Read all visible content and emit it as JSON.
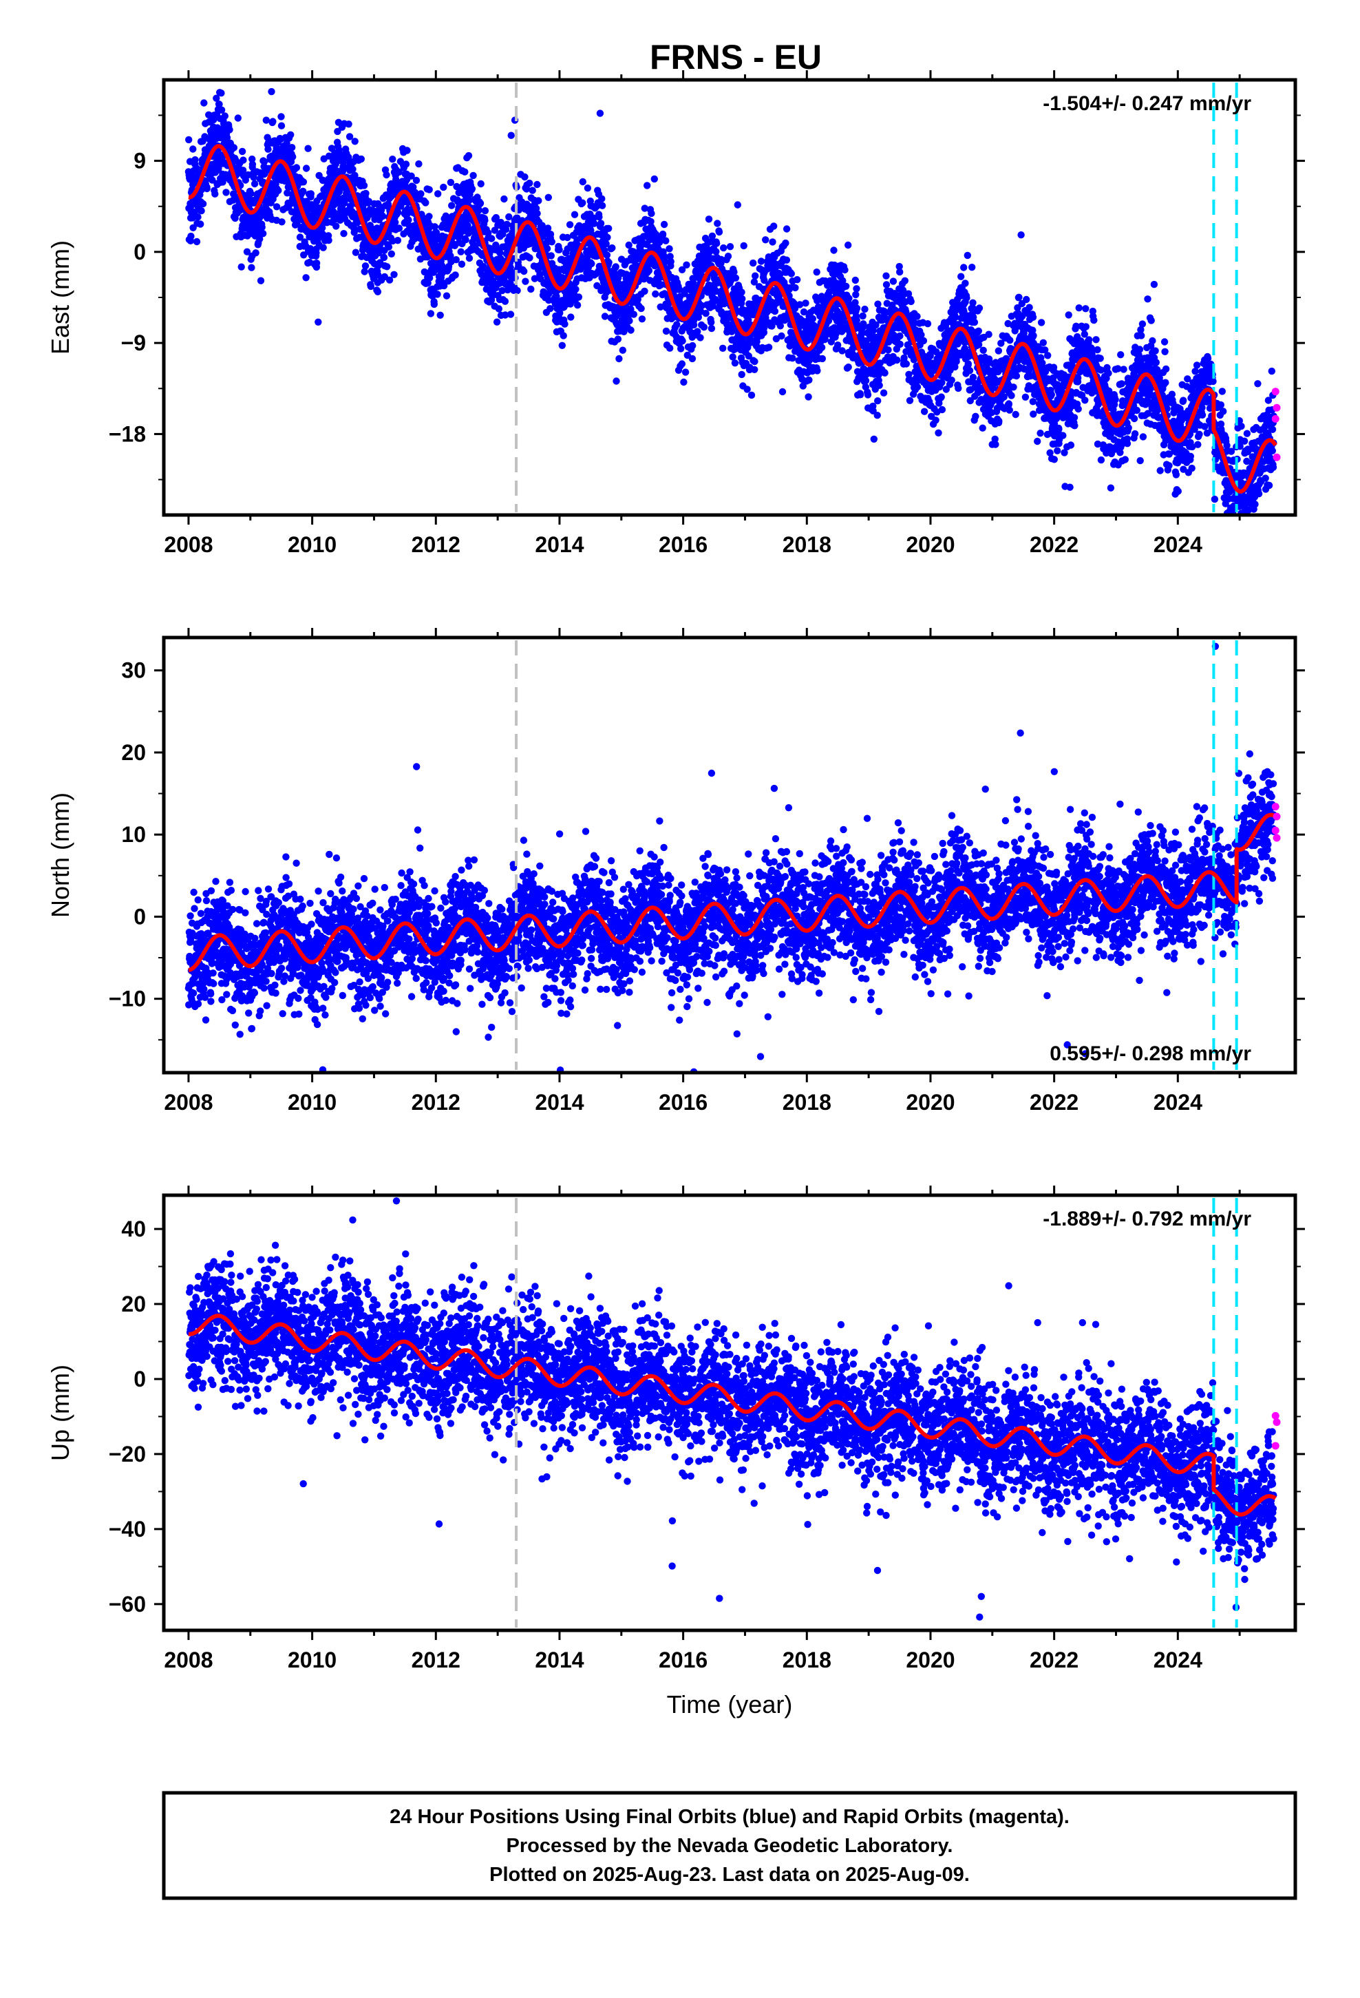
{
  "title": "FRNS - EU",
  "footer": {
    "lines": [
      "24 Hour Positions Using Final Orbits (blue) and Rapid Orbits (magenta).",
      "Processed by the Nevada Geodetic Laboratory.",
      "Plotted on 2025-Aug-23. Last data on 2025-Aug-09."
    ]
  },
  "colors": {
    "final_orbits": "#0000ff",
    "rapid_orbits": "#ff00ff",
    "model": "#ff0000",
    "equipment_change": "#c0c0c0",
    "event_marker": "#00e5ff"
  },
  "chart_data": [
    {
      "type": "scatter",
      "ylabel": "East (mm)",
      "xlim": [
        2007.6,
        2025.9
      ],
      "ylim": [
        -26,
        17
      ],
      "xticks": [
        2008,
        2010,
        2012,
        2014,
        2016,
        2018,
        2020,
        2022,
        2024
      ],
      "yticks": [
        9,
        0,
        -9,
        -18
      ],
      "rate_label": "-1.504+/- 0.247 mm/yr",
      "rate_label_position": "top-right",
      "model": {
        "start": [
          2008.0,
          8.3
        ],
        "rate": -1.504,
        "annual_amplitude": 2.9,
        "annual_peak_phase": 0.5,
        "offsets": [
          {
            "x": 2024.58,
            "dy": -3.5
          }
        ],
        "noise_sd": 2.3
      },
      "series": [
        {
          "name": "Final Orbits (blue)"
        },
        {
          "name": "Rapid Orbits (magenta)"
        }
      ],
      "rapid_points": [
        [
          2025.58,
          -13.8
        ],
        [
          2025.6,
          -15.4
        ],
        [
          2025.58,
          -16.5
        ],
        [
          2025.6,
          -20.3
        ]
      ],
      "vlines": [
        {
          "x": 2013.3,
          "kind": "equipment_change"
        },
        {
          "x": 2024.58,
          "kind": "event_marker"
        },
        {
          "x": 2024.95,
          "kind": "event_marker"
        }
      ]
    },
    {
      "type": "scatter",
      "ylabel": "North (mm)",
      "xlim": [
        2007.6,
        2025.9
      ],
      "ylim": [
        -19,
        34
      ],
      "xticks": [
        2008,
        2010,
        2012,
        2014,
        2016,
        2018,
        2020,
        2022,
        2024
      ],
      "yticks": [
        30,
        20,
        10,
        0,
        -10
      ],
      "rate_label": "0.595+/- 0.298 mm/yr",
      "rate_label_position": "bottom-right",
      "model": {
        "start": [
          2008.0,
          -4.5
        ],
        "rate": 0.48,
        "annual_amplitude": 2.0,
        "annual_peak_phase": 0.5,
        "offsets": [
          {
            "x": 2024.95,
            "dy": 6.5
          }
        ],
        "noise_sd": 3.3
      },
      "series": [
        {
          "name": "Final Orbits (blue)"
        },
        {
          "name": "Rapid Orbits (magenta)"
        }
      ],
      "rapid_points": [
        [
          2025.58,
          13.4
        ],
        [
          2025.6,
          12.2
        ],
        [
          2025.58,
          10.5
        ],
        [
          2025.6,
          9.6
        ]
      ],
      "vlines": [
        {
          "x": 2013.3,
          "kind": "equipment_change"
        },
        {
          "x": 2024.58,
          "kind": "event_marker"
        },
        {
          "x": 2024.95,
          "kind": "event_marker"
        }
      ]
    },
    {
      "type": "scatter",
      "ylabel": "Up (mm)",
      "xlim": [
        2007.6,
        2025.9
      ],
      "ylim": [
        -67,
        49
      ],
      "xticks": [
        2008,
        2010,
        2012,
        2014,
        2016,
        2018,
        2020,
        2022,
        2024
      ],
      "yticks": [
        40,
        20,
        0,
        -20,
        -40,
        -60
      ],
      "rate_label": "-1.889+/- 0.792 mm/yr",
      "rate_label_position": "top-right",
      "model": {
        "start": [
          2008.0,
          15.0
        ],
        "rate": -2.3,
        "annual_amplitude": 3.0,
        "annual_peak_phase": 0.5,
        "offsets": [
          {
            "x": 2024.58,
            "dy": -9.0
          }
        ],
        "noise_sd": 8.0
      },
      "series": [
        {
          "name": "Final Orbits (blue)"
        },
        {
          "name": "Rapid Orbits (magenta)"
        }
      ],
      "rapid_points": [
        [
          2025.58,
          -9.8
        ],
        [
          2025.6,
          -11.5
        ],
        [
          2025.58,
          -17.8
        ]
      ],
      "vlines": [
        {
          "x": 2013.3,
          "kind": "equipment_change"
        },
        {
          "x": 2024.58,
          "kind": "event_marker"
        },
        {
          "x": 2024.95,
          "kind": "event_marker"
        }
      ]
    }
  ]
}
